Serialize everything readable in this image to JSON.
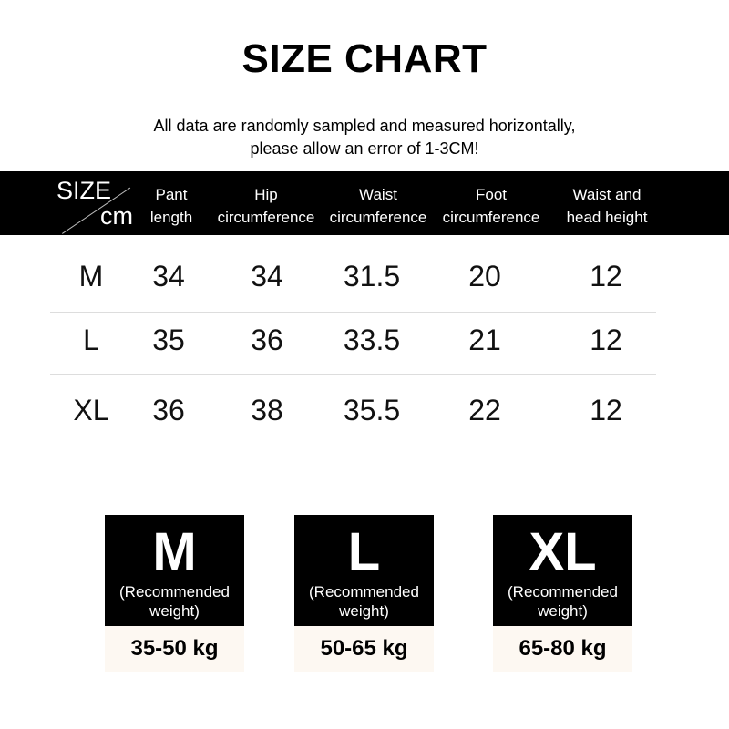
{
  "title": "SIZE CHART",
  "note": [
    "All data are randomly sampled and measured horizontally,",
    "please allow an error of 1-3CM!"
  ],
  "header": {
    "size": "SIZE",
    "unit": "cm",
    "columns": [
      [
        "Pant",
        "length"
      ],
      [
        "Hip",
        "circumference"
      ],
      [
        "Waist",
        "circumference"
      ],
      [
        "Foot",
        "circumference"
      ],
      [
        "Waist and",
        "head height"
      ]
    ]
  },
  "rows": [
    [
      "M",
      "34",
      "34",
      "31.5",
      "20",
      "12"
    ],
    [
      "L",
      "35",
      "36",
      "33.5",
      "21",
      "12"
    ],
    [
      "XL",
      "36",
      "38",
      "35.5",
      "22",
      "12"
    ]
  ],
  "cards": [
    {
      "size": "M",
      "label": [
        "(Recommended",
        "weight)"
      ],
      "weight": "35-50 kg"
    },
    {
      "size": "L",
      "label": [
        "(Recommended",
        "weight)"
      ],
      "weight": "50-65 kg"
    },
    {
      "size": "XL",
      "label": [
        "(Recommended",
        "weight)"
      ],
      "weight": "65-80 kg"
    }
  ]
}
